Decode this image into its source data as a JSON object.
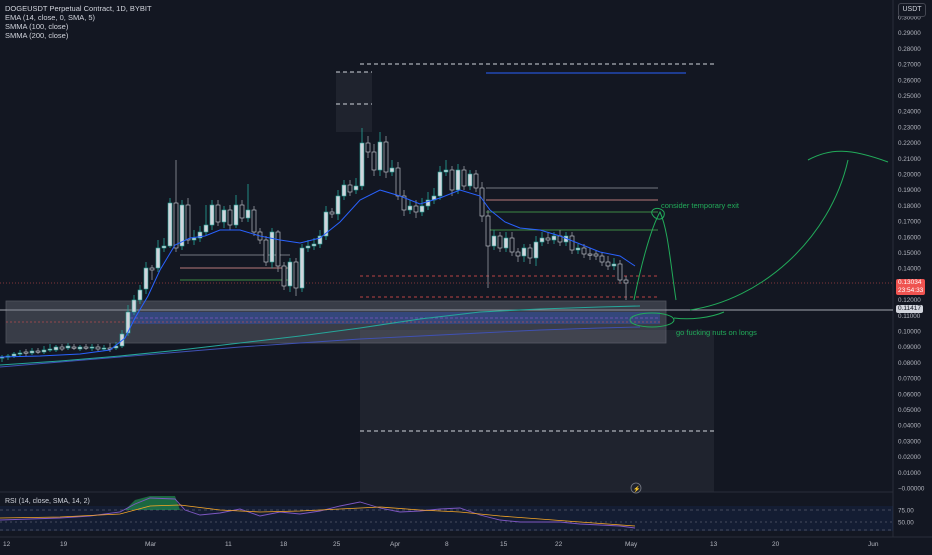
{
  "legend": {
    "symbol": "DOGEUSDT Perpetual Contract, 1D, BYBIT",
    "ema": "EMA (14, close, 0, SMA, 5)",
    "smma100": "SMMA (100, close)",
    "smma200": "SMMA (200, close)"
  },
  "rsi_legend": "RSI (14, close, SMA, 14, 2)",
  "currency_button": "USDT",
  "price_axis": {
    "labels": [
      "0.30000",
      "0.29000",
      "0.28000",
      "0.27000",
      "0.26000",
      "0.25000",
      "0.24000",
      "0.23000",
      "0.22000",
      "0.21000",
      "0.20000",
      "0.19000",
      "0.18000",
      "0.17000",
      "0.16000",
      "0.15000",
      "0.14000",
      "0.13000",
      "0.12000",
      "0.11000",
      "0.10000",
      "0.09000",
      "0.08000",
      "0.07000",
      "0.06000",
      "0.05000",
      "0.04000",
      "0.03000",
      "0.02000",
      "0.01000",
      "−0.00000"
    ]
  },
  "rsi_axis": {
    "labels": [
      "75.00",
      "50.00"
    ]
  },
  "current_price": {
    "value": "0.13034",
    "countdown": "23:54:33",
    "color": "#ef5350"
  },
  "marked_price": {
    "value": "0.11417"
  },
  "time_axis": {
    "labels": [
      "12",
      "19",
      "Mar",
      "11",
      "18",
      "25",
      "Apr",
      "8",
      "15",
      "22",
      "May",
      "13",
      "20",
      "Jun"
    ]
  },
  "annotations": {
    "exit_note": "consider temporary exit",
    "long_note": "go fucking nuts on longs"
  },
  "colors": {
    "bg": "#131722",
    "up": "#d1d4dc",
    "down": "#d1d4dc",
    "ema": "#2962ff",
    "smma100": "#26a69a",
    "smma200": "#3f51b5",
    "annotation": "#22ab5a"
  }
}
